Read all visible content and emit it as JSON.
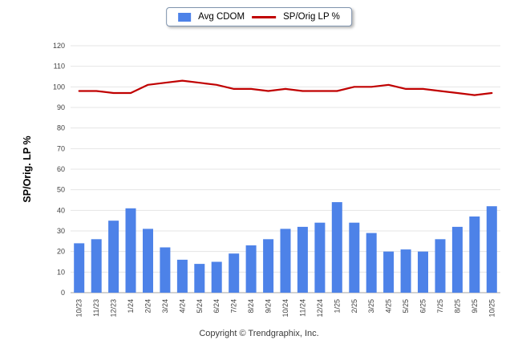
{
  "legend": {
    "bar_label": "Avg CDOM",
    "line_label": "SP/Orig LP %"
  },
  "footer": {
    "copyright": "Copyright © Trendgraphix, Inc."
  },
  "chart_data": {
    "type": "bar",
    "subtype": "bar+line combo",
    "categories": [
      "10/23",
      "11/23",
      "12/23",
      "1/24",
      "2/24",
      "3/24",
      "4/24",
      "5/24",
      "6/24",
      "7/24",
      "8/24",
      "9/24",
      "10/24",
      "11/24",
      "12/24",
      "1/25",
      "2/25",
      "3/25",
      "4/25",
      "5/25",
      "6/25",
      "7/25",
      "8/25",
      "9/25",
      "10/25"
    ],
    "series": [
      {
        "name": "Avg CDOM",
        "type": "bar",
        "color": "#4d82e8",
        "values": [
          24,
          26,
          35,
          41,
          31,
          22,
          16,
          14,
          15,
          19,
          23,
          26,
          31,
          32,
          34,
          44,
          34,
          29,
          20,
          21,
          20,
          26,
          32,
          37,
          42
        ]
      },
      {
        "name": "SP/Orig LP %",
        "type": "line",
        "color": "#c00000",
        "values": [
          98,
          98,
          97,
          97,
          101,
          102,
          103,
          102,
          101,
          99,
          99,
          98,
          99,
          98,
          98,
          98,
          100,
          100,
          101,
          99,
          99,
          98,
          97,
          96,
          97
        ]
      }
    ],
    "title": "",
    "xlabel": "",
    "ylabel": "SP/Orig. LP %",
    "ylim": [
      0,
      120
    ],
    "ytick_step": 10,
    "grid": true,
    "legend_position": "top-center"
  }
}
